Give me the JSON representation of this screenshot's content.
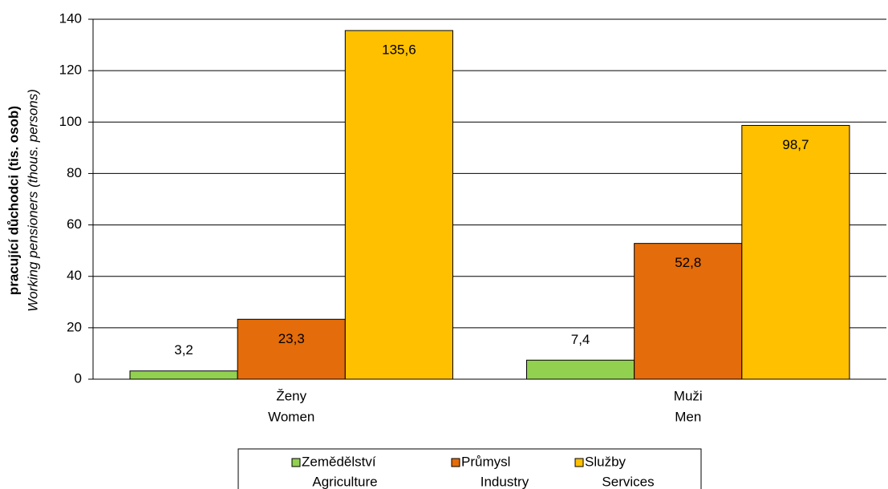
{
  "chart_data": {
    "type": "bar",
    "ylabel": [
      "pracující důchodci (tis. osob)",
      "Working pensioners (thous. persons)"
    ],
    "categories": [
      [
        "Ženy",
        "Women"
      ],
      [
        "Muži",
        "Men"
      ]
    ],
    "series": [
      {
        "name": [
          "Zemědělství",
          "Agriculture"
        ],
        "color": "#92d050",
        "values": [
          3.2,
          7.4
        ],
        "value_labels": [
          "3,2",
          "7,4"
        ]
      },
      {
        "name": [
          "Průmysl",
          "Industry"
        ],
        "color": "#e46c0a",
        "values": [
          23.3,
          52.8
        ],
        "value_labels": [
          "23,3",
          "52,8"
        ]
      },
      {
        "name": [
          "Služby",
          "Services"
        ],
        "color": "#ffc000",
        "values": [
          135.6,
          98.7
        ],
        "value_labels": [
          "135,6",
          "98,7"
        ]
      }
    ],
    "ylim": [
      0,
      140
    ],
    "yticks": [
      0,
      20,
      40,
      60,
      80,
      100,
      120,
      140
    ],
    "grid": true
  }
}
